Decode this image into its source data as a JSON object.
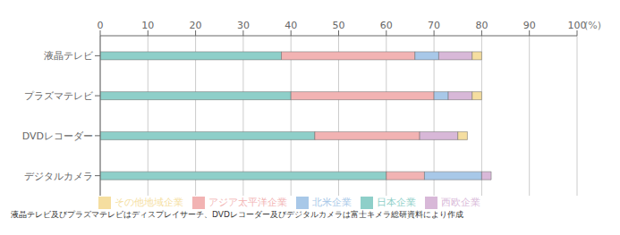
{
  "chart_data": {
    "type": "bar",
    "orientation": "horizontal",
    "stacked": true,
    "categories": [
      "液晶テレビ",
      "プラズマテレビ",
      "DVDレコーダー",
      "デジタルカメラ"
    ],
    "series": [
      {
        "name": "日本企業",
        "color": "#8ecfc9",
        "values": [
          38,
          40,
          45,
          60
        ]
      },
      {
        "name": "アジア太平洋企業",
        "color": "#f2b3b3",
        "values": [
          28,
          30,
          22,
          8
        ]
      },
      {
        "name": "北米企業",
        "color": "#a8c8e8",
        "values": [
          5,
          3,
          0,
          12
        ]
      },
      {
        "name": "西欧企業",
        "color": "#d8b8d8",
        "values": [
          7,
          5,
          8,
          2
        ]
      },
      {
        "name": "その他地域企業",
        "color": "#f5dea0",
        "values": [
          2,
          2,
          2,
          0
        ]
      }
    ],
    "xlabel": "(%)",
    "xlim": [
      0,
      100
    ],
    "xticks": [
      0,
      10,
      20,
      30,
      40,
      50,
      60,
      70,
      80,
      90,
      100
    ],
    "grid": true,
    "legend": "bottom",
    "annotations": [
      "液晶テレビ及びプラズマテレビはディスプレイサーチ、DVDレコーダー及びデジタルカメラは富士キメラ総研資料により作成"
    ]
  }
}
